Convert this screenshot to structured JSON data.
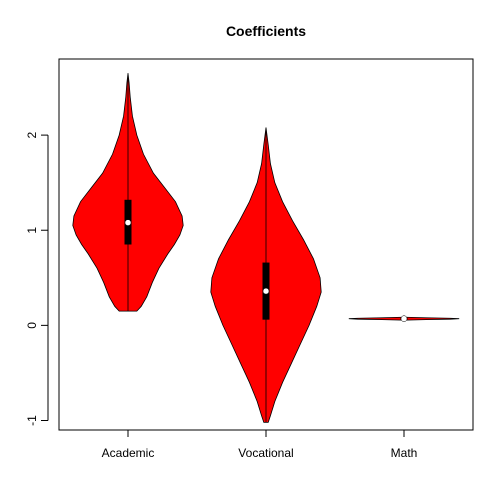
{
  "chart_data": {
    "type": "violin",
    "title": "Coefficients",
    "xlabel": "",
    "ylabel": "",
    "categories": [
      "Academic",
      "Vocational",
      "Math"
    ],
    "yticks": [
      -1,
      0,
      1,
      2
    ],
    "ylim": [
      -1.1,
      2.8
    ],
    "grid": false,
    "fill_color": "#ff0000",
    "box_color": "#000000",
    "median_color": "#ffffff",
    "violins": [
      {
        "name": "Academic",
        "min": 0.15,
        "q1": 0.85,
        "median": 1.08,
        "q3": 1.32,
        "max": 2.65,
        "halfwidth_profile": [
          [
            0.15,
            0.08
          ],
          [
            0.2,
            0.12
          ],
          [
            0.3,
            0.17
          ],
          [
            0.45,
            0.22
          ],
          [
            0.6,
            0.28
          ],
          [
            0.75,
            0.36
          ],
          [
            0.85,
            0.42
          ],
          [
            0.95,
            0.47
          ],
          [
            1.05,
            0.5
          ],
          [
            1.15,
            0.49
          ],
          [
            1.3,
            0.43
          ],
          [
            1.45,
            0.33
          ],
          [
            1.6,
            0.23
          ],
          [
            1.8,
            0.14
          ],
          [
            2.0,
            0.08
          ],
          [
            2.2,
            0.04
          ],
          [
            2.4,
            0.02
          ],
          [
            2.55,
            0.01
          ],
          [
            2.65,
            0.0
          ]
        ]
      },
      {
        "name": "Vocational",
        "min": -1.02,
        "q1": 0.06,
        "median": 0.36,
        "q3": 0.66,
        "max": 2.08,
        "halfwidth_profile": [
          [
            -1.02,
            0.02
          ],
          [
            -0.95,
            0.04
          ],
          [
            -0.8,
            0.08
          ],
          [
            -0.6,
            0.15
          ],
          [
            -0.4,
            0.23
          ],
          [
            -0.2,
            0.31
          ],
          [
            0.0,
            0.39
          ],
          [
            0.2,
            0.46
          ],
          [
            0.35,
            0.5
          ],
          [
            0.5,
            0.49
          ],
          [
            0.7,
            0.43
          ],
          [
            0.9,
            0.34
          ],
          [
            1.1,
            0.24
          ],
          [
            1.3,
            0.15
          ],
          [
            1.5,
            0.08
          ],
          [
            1.7,
            0.04
          ],
          [
            1.9,
            0.02
          ],
          [
            2.08,
            0.0
          ]
        ]
      },
      {
        "name": "Math",
        "min": 0.05,
        "q1": 0.06,
        "median": 0.07,
        "q3": 0.08,
        "max": 0.09,
        "halfwidth_profile": [
          [
            0.055,
            0.02
          ],
          [
            0.06,
            0.2
          ],
          [
            0.065,
            0.42
          ],
          [
            0.07,
            0.5
          ],
          [
            0.075,
            0.42
          ],
          [
            0.08,
            0.2
          ],
          [
            0.085,
            0.02
          ]
        ]
      }
    ]
  }
}
